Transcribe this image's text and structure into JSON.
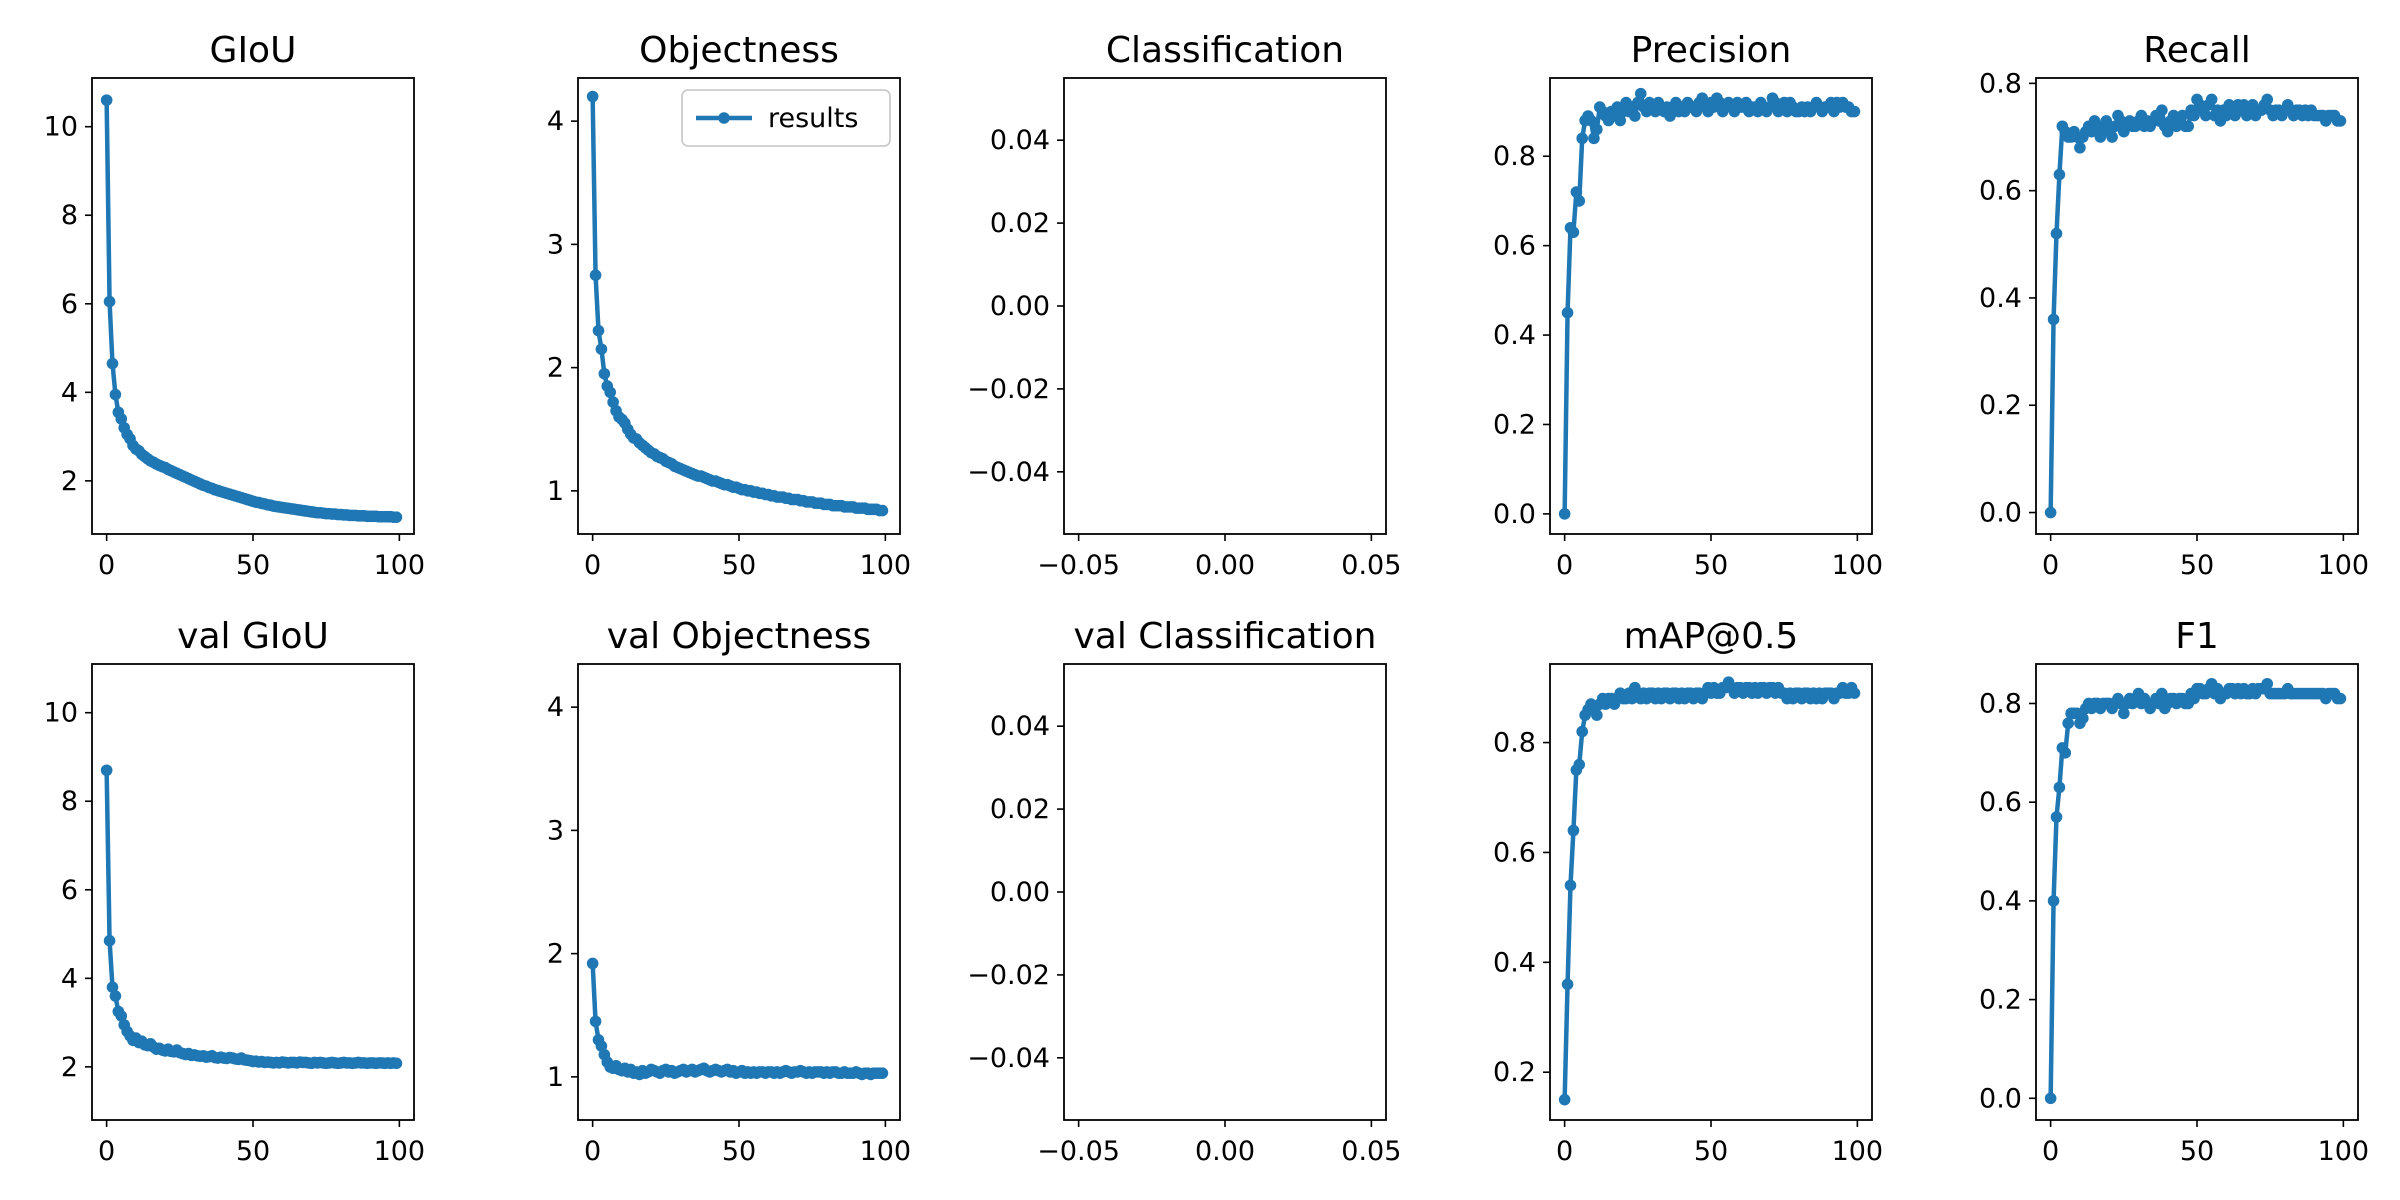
{
  "figure": {
    "series_color": "#1f77b4",
    "legend": {
      "label": "results",
      "panel": "Objectness",
      "placement": "upper right"
    }
  },
  "chart_data": [
    {
      "type": "line",
      "title": "GIoU",
      "xlabel": "",
      "ylabel": "",
      "xlim": [
        -5,
        105
      ],
      "ylim": [
        0.8,
        11.1
      ],
      "xticks": [
        0,
        50,
        100
      ],
      "yticks": [
        2,
        4,
        6,
        8,
        10
      ],
      "series": [
        {
          "values": [
            10.6,
            6.05,
            4.65,
            3.95,
            3.55,
            3.4,
            3.2,
            3.05,
            2.95,
            2.8,
            2.72,
            2.68,
            2.6,
            2.55,
            2.5,
            2.45,
            2.42,
            2.38,
            2.35,
            2.32,
            2.3,
            2.26,
            2.23,
            2.2,
            2.17,
            2.14,
            2.11,
            2.08,
            2.05,
            2.02,
            1.99,
            1.96,
            1.93,
            1.9,
            1.88,
            1.85,
            1.83,
            1.8,
            1.78,
            1.76,
            1.74,
            1.72,
            1.7,
            1.68,
            1.66,
            1.64,
            1.62,
            1.6,
            1.58,
            1.56,
            1.54,
            1.52,
            1.51,
            1.49,
            1.48,
            1.46,
            1.45,
            1.43,
            1.42,
            1.41,
            1.4,
            1.39,
            1.38,
            1.37,
            1.36,
            1.35,
            1.34,
            1.33,
            1.32,
            1.31,
            1.3,
            1.29,
            1.28,
            1.28,
            1.27,
            1.26,
            1.26,
            1.25,
            1.25,
            1.24,
            1.24,
            1.23,
            1.23,
            1.22,
            1.22,
            1.22,
            1.21,
            1.21,
            1.21,
            1.2,
            1.2,
            1.2,
            1.2,
            1.19,
            1.19,
            1.19,
            1.19,
            1.19,
            1.18,
            1.18
          ]
        }
      ]
    },
    {
      "type": "line",
      "title": "Objectness",
      "xlabel": "",
      "ylabel": "",
      "xlim": [
        -5,
        105
      ],
      "ylim": [
        0.65,
        4.35
      ],
      "xticks": [
        0,
        50,
        100
      ],
      "yticks": [
        1,
        2,
        3,
        4
      ],
      "series": [
        {
          "name": "results",
          "values": [
            4.2,
            2.75,
            2.3,
            2.15,
            1.95,
            1.85,
            1.8,
            1.72,
            1.65,
            1.6,
            1.58,
            1.55,
            1.5,
            1.46,
            1.43,
            1.42,
            1.39,
            1.37,
            1.35,
            1.33,
            1.31,
            1.3,
            1.28,
            1.27,
            1.26,
            1.24,
            1.23,
            1.22,
            1.2,
            1.19,
            1.18,
            1.17,
            1.16,
            1.15,
            1.14,
            1.13,
            1.12,
            1.12,
            1.11,
            1.1,
            1.09,
            1.08,
            1.08,
            1.07,
            1.06,
            1.05,
            1.05,
            1.04,
            1.03,
            1.03,
            1.02,
            1.01,
            1.01,
            1.0,
            1.0,
            0.99,
            0.99,
            0.98,
            0.98,
            0.97,
            0.97,
            0.96,
            0.96,
            0.95,
            0.95,
            0.95,
            0.94,
            0.94,
            0.93,
            0.93,
            0.93,
            0.92,
            0.92,
            0.91,
            0.91,
            0.91,
            0.9,
            0.9,
            0.9,
            0.89,
            0.89,
            0.89,
            0.88,
            0.88,
            0.88,
            0.88,
            0.87,
            0.87,
            0.87,
            0.87,
            0.86,
            0.86,
            0.86,
            0.86,
            0.85,
            0.85,
            0.85,
            0.85,
            0.84,
            0.84
          ]
        }
      ]
    },
    {
      "type": "line",
      "title": "Classification",
      "xlabel": "",
      "ylabel": "",
      "xlim": [
        -0.055,
        0.055
      ],
      "ylim": [
        -0.055,
        0.055
      ],
      "xticks": [
        -0.05,
        0.0,
        0.05
      ],
      "yticks": [
        -0.04,
        -0.02,
        0.0,
        0.02,
        0.04
      ],
      "xtick_labels": [
        "−0.05",
        "0.00",
        "0.05"
      ],
      "ytick_labels": [
        "−0.04",
        "−0.02",
        "0.00",
        "0.02",
        "0.04"
      ],
      "series": []
    },
    {
      "type": "line",
      "title": "Precision",
      "xlabel": "",
      "ylabel": "",
      "xlim": [
        -5,
        105
      ],
      "ylim": [
        -0.045,
        0.975
      ],
      "xticks": [
        0,
        50,
        100
      ],
      "yticks": [
        0.0,
        0.2,
        0.4,
        0.6,
        0.8
      ],
      "ytick_labels": [
        "0.0",
        "0.2",
        "0.4",
        "0.6",
        "0.8"
      ],
      "series": [
        {
          "values": [
            0.0,
            0.45,
            0.64,
            0.63,
            0.72,
            0.7,
            0.84,
            0.88,
            0.89,
            0.88,
            0.84,
            0.86,
            0.91,
            0.9,
            0.89,
            0.88,
            0.9,
            0.89,
            0.91,
            0.88,
            0.9,
            0.92,
            0.9,
            0.91,
            0.89,
            0.92,
            0.94,
            0.91,
            0.9,
            0.92,
            0.91,
            0.9,
            0.92,
            0.91,
            0.9,
            0.91,
            0.89,
            0.9,
            0.92,
            0.9,
            0.91,
            0.9,
            0.92,
            0.91,
            0.91,
            0.9,
            0.92,
            0.93,
            0.91,
            0.9,
            0.92,
            0.91,
            0.93,
            0.92,
            0.9,
            0.91,
            0.92,
            0.91,
            0.9,
            0.92,
            0.91,
            0.91,
            0.92,
            0.9,
            0.91,
            0.91,
            0.9,
            0.92,
            0.91,
            0.9,
            0.91,
            0.93,
            0.92,
            0.9,
            0.91,
            0.92,
            0.9,
            0.92,
            0.91,
            0.9,
            0.9,
            0.91,
            0.9,
            0.91,
            0.9,
            0.91,
            0.92,
            0.91,
            0.9,
            0.91,
            0.91,
            0.92,
            0.9,
            0.92,
            0.91,
            0.92,
            0.91,
            0.91,
            0.9,
            0.9
          ]
        }
      ]
    },
    {
      "type": "line",
      "title": "Recall",
      "xlabel": "",
      "ylabel": "",
      "xlim": [
        -5,
        105
      ],
      "ylim": [
        -0.04,
        0.81
      ],
      "xticks": [
        0,
        50,
        100
      ],
      "yticks": [
        0.0,
        0.2,
        0.4,
        0.6,
        0.8
      ],
      "ytick_labels": [
        "0.0",
        "0.2",
        "0.4",
        "0.6",
        "0.8"
      ],
      "series": [
        {
          "values": [
            0.0,
            0.36,
            0.52,
            0.63,
            0.72,
            0.71,
            0.7,
            0.7,
            0.71,
            0.7,
            0.68,
            0.7,
            0.71,
            0.72,
            0.71,
            0.73,
            0.72,
            0.7,
            0.71,
            0.73,
            0.72,
            0.7,
            0.72,
            0.74,
            0.73,
            0.71,
            0.72,
            0.73,
            0.72,
            0.72,
            0.73,
            0.74,
            0.72,
            0.73,
            0.72,
            0.73,
            0.74,
            0.73,
            0.75,
            0.72,
            0.71,
            0.73,
            0.74,
            0.72,
            0.73,
            0.74,
            0.72,
            0.72,
            0.75,
            0.74,
            0.77,
            0.76,
            0.75,
            0.74,
            0.76,
            0.77,
            0.74,
            0.75,
            0.73,
            0.75,
            0.74,
            0.76,
            0.75,
            0.74,
            0.76,
            0.75,
            0.76,
            0.74,
            0.75,
            0.76,
            0.74,
            0.75,
            0.75,
            0.76,
            0.77,
            0.75,
            0.74,
            0.75,
            0.75,
            0.74,
            0.75,
            0.76,
            0.75,
            0.74,
            0.75,
            0.75,
            0.74,
            0.75,
            0.74,
            0.75,
            0.74,
            0.74,
            0.74,
            0.74,
            0.73,
            0.74,
            0.74,
            0.74,
            0.73,
            0.73
          ]
        }
      ]
    },
    {
      "type": "line",
      "title": "val GIoU",
      "xlabel": "",
      "ylabel": "",
      "xlim": [
        -5,
        105
      ],
      "ylim": [
        0.8,
        11.1
      ],
      "xticks": [
        0,
        50,
        100
      ],
      "yticks": [
        2,
        4,
        6,
        8,
        10
      ],
      "series": [
        {
          "values": [
            8.7,
            4.85,
            3.8,
            3.6,
            3.25,
            3.15,
            2.95,
            2.8,
            2.7,
            2.6,
            2.65,
            2.55,
            2.58,
            2.5,
            2.48,
            2.52,
            2.45,
            2.4,
            2.42,
            2.38,
            2.36,
            2.4,
            2.35,
            2.34,
            2.38,
            2.32,
            2.3,
            2.28,
            2.3,
            2.26,
            2.27,
            2.25,
            2.24,
            2.25,
            2.22,
            2.23,
            2.25,
            2.21,
            2.2,
            2.22,
            2.2,
            2.19,
            2.21,
            2.2,
            2.18,
            2.17,
            2.2,
            2.16,
            2.15,
            2.14,
            2.12,
            2.13,
            2.11,
            2.12,
            2.1,
            2.11,
            2.1,
            2.09,
            2.1,
            2.09,
            2.11,
            2.1,
            2.09,
            2.1,
            2.1,
            2.09,
            2.11,
            2.1,
            2.1,
            2.09,
            2.08,
            2.1,
            2.09,
            2.1,
            2.09,
            2.08,
            2.09,
            2.1,
            2.09,
            2.08,
            2.09,
            2.1,
            2.09,
            2.09,
            2.08,
            2.09,
            2.1,
            2.09,
            2.09,
            2.08,
            2.09,
            2.09,
            2.08,
            2.09,
            2.09,
            2.08,
            2.09,
            2.08,
            2.09,
            2.08
          ]
        }
      ]
    },
    {
      "type": "line",
      "title": "val Objectness",
      "xlabel": "",
      "ylabel": "",
      "xlim": [
        -5,
        105
      ],
      "ylim": [
        0.65,
        4.35
      ],
      "xticks": [
        0,
        50,
        100
      ],
      "yticks": [
        1,
        2,
        3,
        4
      ],
      "series": [
        {
          "values": [
            1.92,
            1.45,
            1.3,
            1.25,
            1.18,
            1.12,
            1.08,
            1.07,
            1.09,
            1.06,
            1.05,
            1.07,
            1.04,
            1.06,
            1.03,
            1.04,
            1.02,
            1.05,
            1.03,
            1.04,
            1.06,
            1.05,
            1.04,
            1.03,
            1.05,
            1.06,
            1.04,
            1.05,
            1.03,
            1.04,
            1.05,
            1.06,
            1.04,
            1.05,
            1.06,
            1.04,
            1.05,
            1.06,
            1.07,
            1.05,
            1.04,
            1.05,
            1.06,
            1.05,
            1.04,
            1.05,
            1.06,
            1.04,
            1.05,
            1.03,
            1.04,
            1.05,
            1.03,
            1.04,
            1.03,
            1.04,
            1.03,
            1.04,
            1.04,
            1.03,
            1.04,
            1.04,
            1.03,
            1.04,
            1.03,
            1.04,
            1.05,
            1.04,
            1.03,
            1.04,
            1.04,
            1.05,
            1.04,
            1.03,
            1.04,
            1.03,
            1.04,
            1.04,
            1.04,
            1.03,
            1.04,
            1.03,
            1.04,
            1.04,
            1.03,
            1.03,
            1.04,
            1.03,
            1.03,
            1.03,
            1.04,
            1.03,
            1.02,
            1.03,
            1.03,
            1.02,
            1.03,
            1.03,
            1.03,
            1.03
          ]
        }
      ]
    },
    {
      "type": "line",
      "title": "val Classification",
      "xlabel": "",
      "ylabel": "",
      "xlim": [
        -0.055,
        0.055
      ],
      "ylim": [
        -0.055,
        0.055
      ],
      "xticks": [
        -0.05,
        0.0,
        0.05
      ],
      "yticks": [
        -0.04,
        -0.02,
        0.0,
        0.02,
        0.04
      ],
      "xtick_labels": [
        "−0.05",
        "0.00",
        "0.05"
      ],
      "ytick_labels": [
        "−0.04",
        "−0.02",
        "0.00",
        "0.02",
        "0.04"
      ],
      "series": []
    },
    {
      "type": "line",
      "title": "mAP@0.5",
      "xlabel": "",
      "ylabel": "",
      "xlim": [
        -5,
        105
      ],
      "ylim": [
        0.113,
        0.943
      ],
      "xticks": [
        0,
        50,
        100
      ],
      "yticks": [
        0.2,
        0.4,
        0.6,
        0.8
      ],
      "ytick_labels": [
        "0.2",
        "0.4",
        "0.6",
        "0.8"
      ],
      "series": [
        {
          "values": [
            0.15,
            0.36,
            0.54,
            0.64,
            0.75,
            0.76,
            0.82,
            0.85,
            0.86,
            0.87,
            0.86,
            0.85,
            0.87,
            0.88,
            0.87,
            0.88,
            0.88,
            0.87,
            0.88,
            0.89,
            0.88,
            0.88,
            0.89,
            0.88,
            0.9,
            0.89,
            0.88,
            0.89,
            0.88,
            0.89,
            0.89,
            0.88,
            0.89,
            0.88,
            0.89,
            0.89,
            0.88,
            0.89,
            0.89,
            0.88,
            0.89,
            0.88,
            0.89,
            0.89,
            0.88,
            0.89,
            0.89,
            0.88,
            0.89,
            0.9,
            0.89,
            0.9,
            0.89,
            0.89,
            0.9,
            0.9,
            0.91,
            0.9,
            0.89,
            0.9,
            0.9,
            0.89,
            0.9,
            0.9,
            0.89,
            0.9,
            0.89,
            0.9,
            0.9,
            0.89,
            0.9,
            0.9,
            0.89,
            0.9,
            0.89,
            0.89,
            0.88,
            0.89,
            0.88,
            0.89,
            0.89,
            0.88,
            0.89,
            0.89,
            0.88,
            0.89,
            0.88,
            0.89,
            0.88,
            0.89,
            0.89,
            0.89,
            0.88,
            0.89,
            0.89,
            0.9,
            0.89,
            0.89,
            0.9,
            0.89
          ]
        }
      ]
    },
    {
      "type": "line",
      "title": "F1",
      "xlabel": "",
      "ylabel": "",
      "xlim": [
        -5,
        105
      ],
      "ylim": [
        -0.044,
        0.88
      ],
      "xticks": [
        0,
        50,
        100
      ],
      "yticks": [
        0.0,
        0.2,
        0.4,
        0.6,
        0.8
      ],
      "ytick_labels": [
        "0.0",
        "0.2",
        "0.4",
        "0.6",
        "0.8"
      ],
      "series": [
        {
          "values": [
            0.0,
            0.4,
            0.57,
            0.63,
            0.71,
            0.7,
            0.76,
            0.78,
            0.78,
            0.78,
            0.76,
            0.77,
            0.79,
            0.8,
            0.79,
            0.8,
            0.8,
            0.79,
            0.8,
            0.8,
            0.8,
            0.79,
            0.8,
            0.81,
            0.8,
            0.78,
            0.8,
            0.81,
            0.8,
            0.81,
            0.82,
            0.8,
            0.81,
            0.8,
            0.79,
            0.8,
            0.81,
            0.8,
            0.82,
            0.79,
            0.8,
            0.81,
            0.81,
            0.8,
            0.81,
            0.81,
            0.8,
            0.8,
            0.82,
            0.81,
            0.83,
            0.83,
            0.82,
            0.82,
            0.83,
            0.84,
            0.82,
            0.83,
            0.81,
            0.82,
            0.82,
            0.83,
            0.83,
            0.82,
            0.83,
            0.82,
            0.83,
            0.82,
            0.82,
            0.83,
            0.82,
            0.83,
            0.83,
            0.83,
            0.84,
            0.82,
            0.82,
            0.82,
            0.82,
            0.82,
            0.82,
            0.83,
            0.82,
            0.82,
            0.82,
            0.82,
            0.82,
            0.82,
            0.82,
            0.82,
            0.82,
            0.82,
            0.82,
            0.82,
            0.81,
            0.82,
            0.82,
            0.82,
            0.81,
            0.81
          ]
        }
      ]
    }
  ]
}
